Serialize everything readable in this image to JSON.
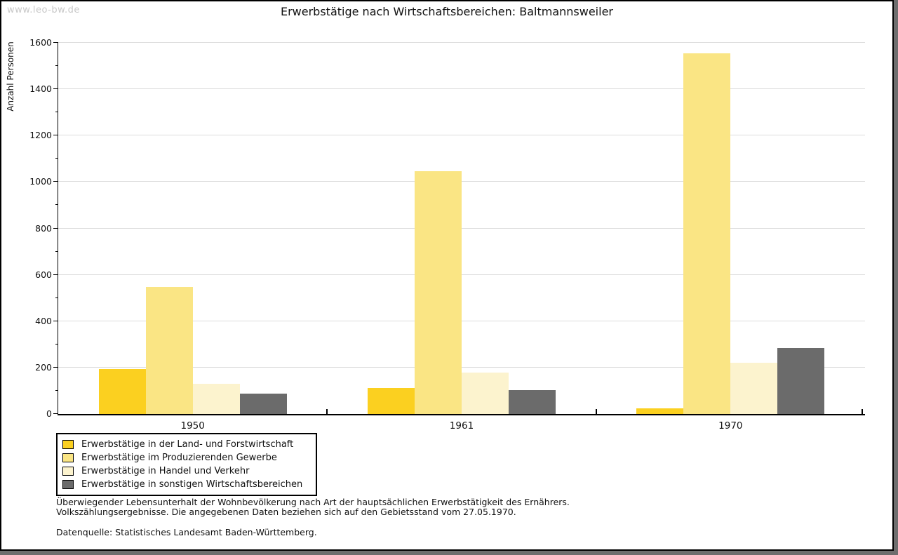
{
  "watermark": "www.leo-bw.de",
  "title": "Erwerbstätige nach Wirtschaftsbereichen: Baltmannsweiler",
  "y_axis": {
    "label": "Anzahl Personen",
    "min": 0,
    "max": 1600,
    "major_step": 200,
    "minor_step": 100
  },
  "chart_data": {
    "type": "bar",
    "title": "Erwerbstätige nach Wirtschaftsbereichen: Baltmannsweiler",
    "categories": [
      "1950",
      "1961",
      "1970"
    ],
    "series": [
      {
        "name": "Erwerbstätige in der Land- und Forstwirtschaft",
        "color": "#FBD020",
        "values": [
          195,
          111,
          23
        ]
      },
      {
        "name": "Erwerbstätige im Produzierenden Gewerbe",
        "color": "#FAE584",
        "values": [
          548,
          1046,
          1556
        ]
      },
      {
        "name": "Erwerbstätige in Handel und Verkehr",
        "color": "#FCF3CE",
        "values": [
          131,
          178,
          221
        ]
      },
      {
        "name": "Erwerbstätige in sonstigen Wirtschaftsbereichen",
        "color": "#6B6B6B",
        "values": [
          88,
          103,
          284
        ]
      }
    ],
    "xlabel": "",
    "ylabel": "Anzahl Personen",
    "ylim": [
      0,
      1600
    ],
    "grid": true,
    "legend_position": "bottom-left"
  },
  "footnotes": {
    "line1": "Überwiegender Lebensunterhalt der Wohnbevölkerung nach Art der hauptsächlichen Erwerbstätigkeit des Ernährers.",
    "line2": "Volkszählungsergebnisse. Die angegebenen Daten beziehen sich auf den Gebietsstand vom 27.05.1970.",
    "source": "Datenquelle: Statistisches Landesamt Baden-Württemberg."
  },
  "colors": {
    "gridline": "#DCDCDC",
    "axis": "#000000",
    "watermark": "#C8C8C8",
    "shadow": "#6E6E6E"
  }
}
